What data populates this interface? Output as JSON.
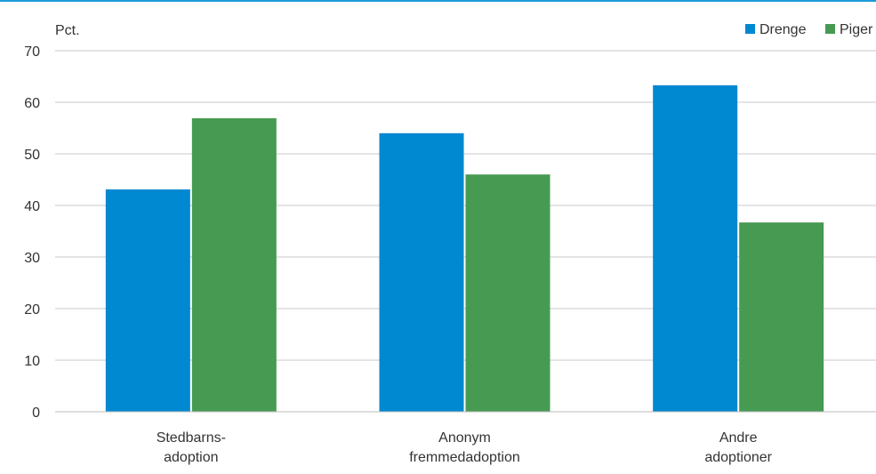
{
  "chart_data": {
    "type": "bar",
    "ylabel": "Pct.",
    "ylim": [
      0,
      70
    ],
    "yticks": [
      0,
      10,
      20,
      30,
      40,
      50,
      60,
      70
    ],
    "grid": true,
    "legend": "top-right",
    "categories": [
      [
        "Stedbarns-",
        "adoption"
      ],
      [
        "Anonym",
        "fremmedadoption"
      ],
      [
        "Andre",
        "adoptioner"
      ]
    ],
    "series": [
      {
        "name": "Drenge",
        "color": "#0088d1",
        "values": [
          43.1,
          54.0,
          63.3
        ]
      },
      {
        "name": "Piger",
        "color": "#479a52",
        "values": [
          56.9,
          46.0,
          36.7
        ]
      }
    ]
  }
}
